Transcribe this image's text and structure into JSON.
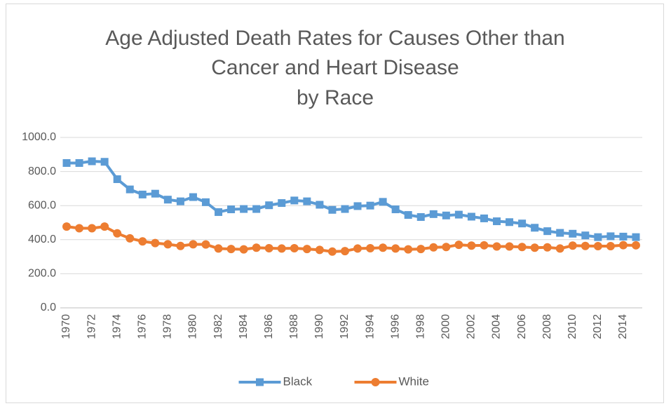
{
  "chart_data": {
    "type": "line",
    "title": [
      "Age Adjusted Death Rates for Causes Other than",
      "Cancer and Heart Disease",
      "by Race"
    ],
    "categories": [
      "1970",
      null,
      "1972",
      null,
      "1974",
      null,
      "1976",
      null,
      "1978",
      null,
      "1980",
      null,
      "1982",
      null,
      "1984",
      null,
      "1986",
      null,
      "1988",
      null,
      "1990",
      null,
      "1992",
      null,
      "1994",
      null,
      "1996",
      null,
      "1998",
      null,
      "2000",
      null,
      "2002",
      null,
      "2004",
      null,
      "2006",
      null,
      "2008",
      null,
      "2010",
      null,
      "2012",
      null,
      "2014",
      null
    ],
    "series": [
      {
        "name": "Black",
        "color": "#5b9bd5",
        "marker": "square",
        "values": [
          850,
          850,
          860,
          857,
          755,
          695,
          665,
          670,
          635,
          625,
          650,
          620,
          562,
          578,
          580,
          580,
          602,
          615,
          630,
          625,
          605,
          575,
          580,
          597,
          600,
          622,
          578,
          545,
          533,
          550,
          542,
          547,
          535,
          525,
          508,
          503,
          495,
          470,
          450,
          440,
          435,
          425,
          415,
          420,
          418,
          415
        ]
      },
      {
        "name": "White",
        "color": "#ed7d31",
        "marker": "circle",
        "values": [
          477,
          467,
          467,
          477,
          437,
          408,
          390,
          380,
          373,
          363,
          373,
          372,
          348,
          345,
          343,
          353,
          350,
          348,
          350,
          345,
          340,
          330,
          333,
          348,
          350,
          353,
          348,
          343,
          345,
          355,
          357,
          370,
          365,
          367,
          360,
          360,
          357,
          353,
          355,
          348,
          365,
          363,
          362,
          362,
          368,
          367
        ]
      }
    ],
    "ylim": [
      0,
      1000
    ],
    "yticks": [
      {
        "value": 0,
        "label": "0.0"
      },
      {
        "value": 200,
        "label": "200.0"
      },
      {
        "value": 400,
        "label": "400.0"
      },
      {
        "value": 600,
        "label": "600.0"
      },
      {
        "value": 800,
        "label": "800.0"
      },
      {
        "value": 1000,
        "label": "1000.0"
      }
    ],
    "grid": true,
    "legend": "bottom"
  }
}
